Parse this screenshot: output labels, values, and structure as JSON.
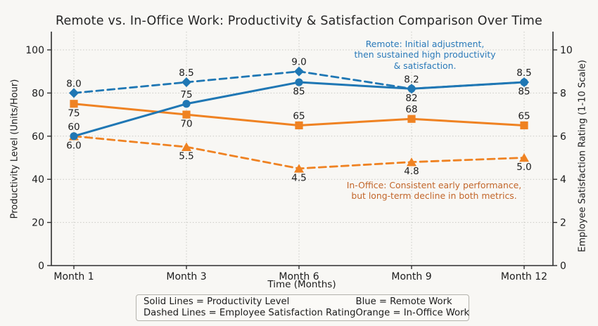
{
  "title": "Remote vs. In-Office Work: Productivity & Satisfaction Comparison Over Time",
  "chart_data": {
    "type": "line",
    "categories": [
      "Month 1",
      "Month 3",
      "Month 6",
      "Month 9",
      "Month 12"
    ],
    "xlabel": "Time (Months)",
    "ylabel_left": "Productivity Level (Units/Hour)",
    "ylabel_right": "Employee Satisfaction Rating (1-10 Scale)",
    "ylim_left": [
      0,
      100
    ],
    "ylim_right": [
      0,
      10
    ],
    "yticks_left": [
      0,
      20,
      40,
      60,
      80,
      100
    ],
    "yticks_right": [
      0,
      2,
      4,
      6,
      8,
      10
    ],
    "grid": true,
    "series": [
      {
        "name": "In-Office Satisfaction",
        "axis": "right",
        "line_style": "dashed",
        "marker": "triangle",
        "color": "#ef8222",
        "values": [
          6.0,
          5.5,
          4.5,
          4.8,
          5.0
        ],
        "point_labels": [
          "6.0",
          "5.5",
          "4.5",
          "4.8",
          "5.0"
        ],
        "label_positions": [
          "below",
          "below",
          "below",
          "below",
          "below"
        ]
      },
      {
        "name": "Remote Satisfaction",
        "axis": "right",
        "line_style": "dashed",
        "marker": "diamond",
        "color": "#1f77b4",
        "values": [
          8.0,
          8.5,
          9.0,
          8.2,
          8.5
        ],
        "point_labels": [
          "8.0",
          "8.5",
          "9.0",
          "8.2",
          "8.5"
        ],
        "label_positions": [
          "above",
          "above",
          "above",
          "above",
          "above"
        ]
      },
      {
        "name": "In-Office Productivity",
        "axis": "left",
        "line_style": "solid",
        "marker": "square",
        "color": "#ef8222",
        "values": [
          75,
          70,
          65,
          68,
          65
        ],
        "point_labels": [
          "75",
          "70",
          "65",
          "68",
          "65"
        ],
        "label_positions": [
          "below",
          "below",
          "above",
          "above",
          "above"
        ]
      },
      {
        "name": "Remote Productivity",
        "axis": "left",
        "line_style": "solid",
        "marker": "circle",
        "color": "#1f77b4",
        "values": [
          60,
          75,
          85,
          82,
          85
        ],
        "point_labels": [
          "60",
          "75",
          "85",
          "82",
          "85"
        ],
        "label_positions": [
          "above",
          "above",
          "below",
          "below",
          "below"
        ]
      }
    ],
    "annotations": [
      {
        "text": "Remote: Initial adjustment,\nthen sustained high productivity\n& satisfaction.",
        "color": "#2979b9",
        "cx": 604,
        "top": 55
      },
      {
        "text": "In-Office: Consistent early performance,\nbut long-term decline in both metrics.",
        "color": "#c2662a",
        "cx": 617,
        "top": 256
      }
    ],
    "legend_position": "bottom-center"
  },
  "legend": {
    "items_left": [
      "Solid Lines = Productivity Level",
      "Dashed Lines = Employee Satisfaction Rating"
    ],
    "items_right": [
      "Blue = Remote Work",
      "Orange = In-Office Work"
    ]
  },
  "colors": {
    "remote_blue": "#1f77b4",
    "in_office_orange": "#ef8222",
    "grid": "#c9c9c3",
    "spine": "#2f2f2f",
    "background": "#f8f7f4"
  }
}
